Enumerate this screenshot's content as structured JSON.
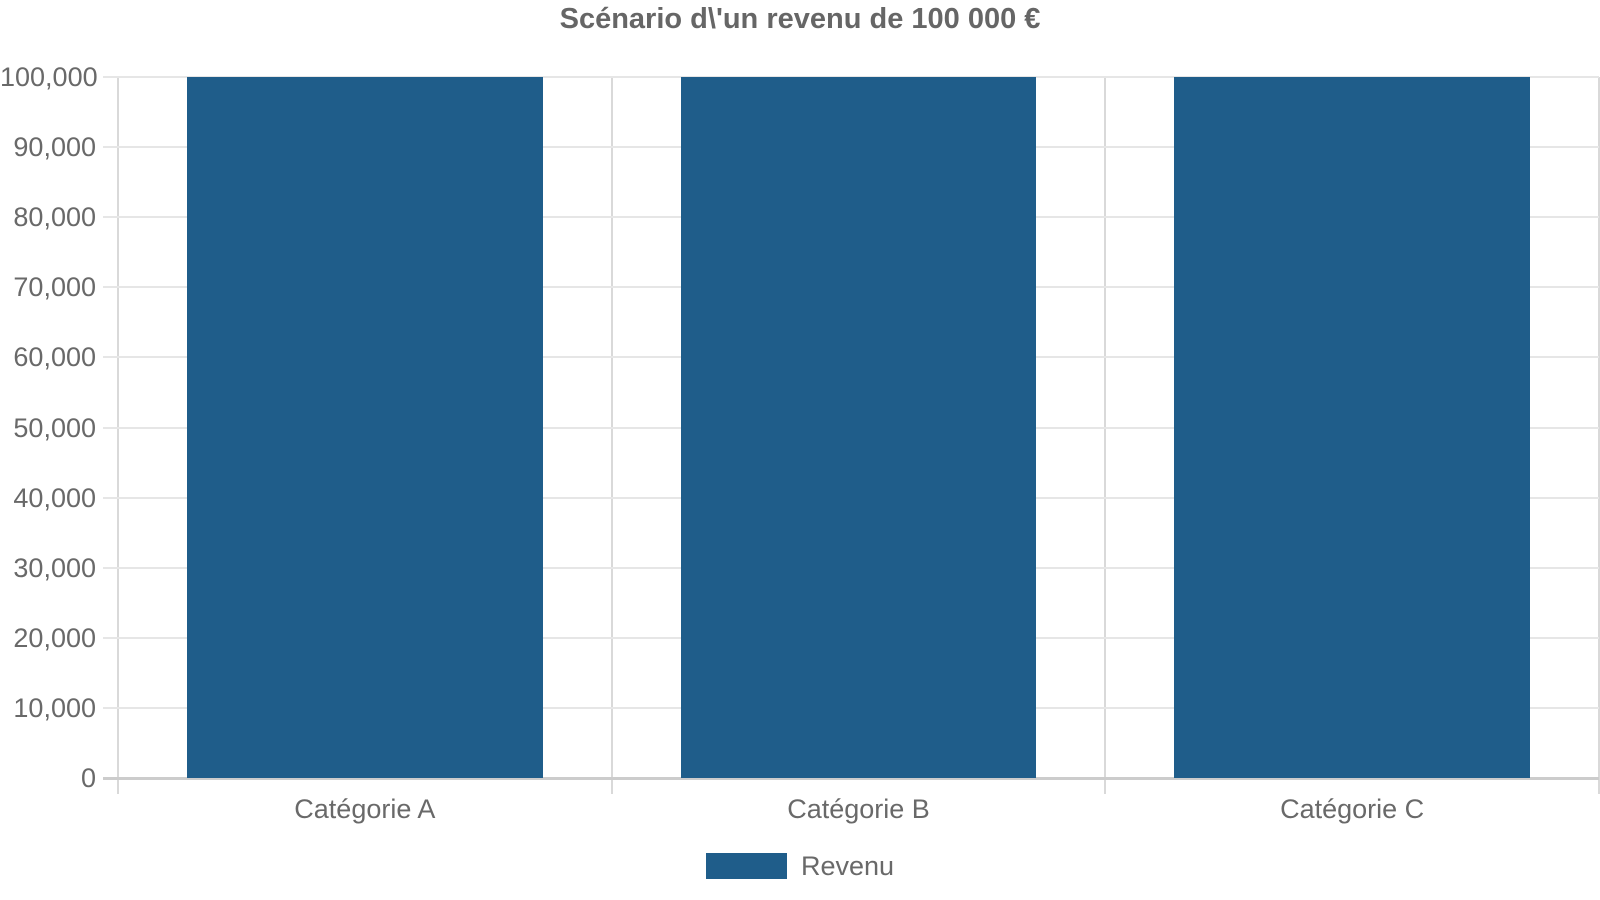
{
  "chart_data": {
    "type": "bar",
    "title": "Scénario d\\'un revenu de 100 000 €",
    "categories": [
      "Catégorie A",
      "Catégorie B",
      "Catégorie C"
    ],
    "series": [
      {
        "name": "Revenu",
        "values": [
          100000,
          100000,
          100000
        ],
        "color": "#1f5d8a"
      }
    ],
    "xlabel": "",
    "ylabel": "",
    "ylim": [
      0,
      100000
    ],
    "yticks": [
      0,
      10000,
      20000,
      30000,
      40000,
      50000,
      60000,
      70000,
      80000,
      90000,
      100000
    ],
    "ytick_labels": [
      "0",
      "10,000",
      "20,000",
      "30,000",
      "40,000",
      "50,000",
      "60,000",
      "70,000",
      "80,000",
      "90,000",
      "100,000"
    ],
    "grid": true,
    "legend_position": "bottom"
  },
  "colors": {
    "bar": "#1f5d8a",
    "title_text": "#666666",
    "axis_text": "#696969",
    "gridline": "#e6e6e6",
    "baseline": "#cccccc",
    "category_gridline": "#d9d9d9",
    "background": "#ffffff"
  }
}
